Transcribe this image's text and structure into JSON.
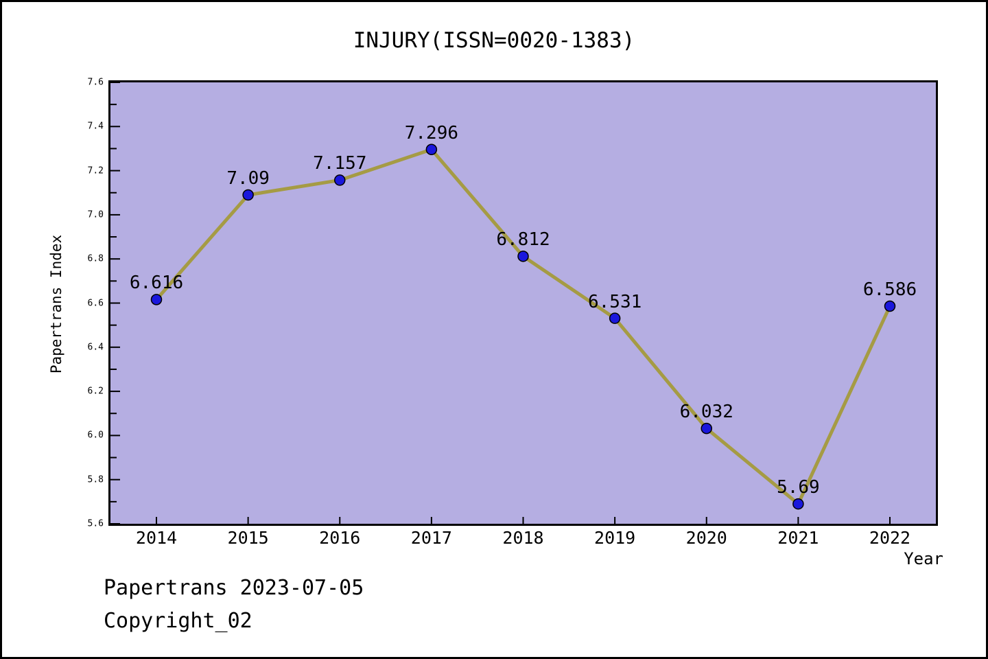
{
  "chart_data": {
    "type": "line",
    "title": "INJURY(ISSN=0020-1383)",
    "xlabel": "Year",
    "ylabel": "Papertrans Index",
    "x": [
      2014,
      2015,
      2016,
      2017,
      2018,
      2019,
      2020,
      2021,
      2022
    ],
    "series": [
      {
        "name": "Papertrans Index",
        "values": [
          6.616,
          7.09,
          7.157,
          7.296,
          6.812,
          6.531,
          6.032,
          5.69,
          6.586
        ]
      }
    ],
    "point_labels": [
      "6.616",
      "7.09",
      "7.157",
      "7.296",
      "6.812",
      "6.531",
      "6.032",
      "5.69",
      "6.586"
    ],
    "xtick_labels": [
      "2014",
      "2015",
      "2016",
      "2017",
      "2018",
      "2019",
      "2020",
      "2021",
      "2022"
    ],
    "ytick_labels": [
      "5.6",
      "5.8",
      "6.0",
      "6.2",
      "6.4",
      "6.6",
      "6.8",
      "7.0",
      "7.2",
      "7.4",
      "7.6"
    ],
    "ylim": [
      5.6,
      7.6
    ],
    "ytick_major_step": 0.2,
    "ytick_minor_step": 0.1,
    "grid": false,
    "legend": null,
    "colors": {
      "line": "#a59b44",
      "marker_fill": "#1a17dc",
      "marker_edge": "#000000",
      "plot_bg": "#b5aee2",
      "axis": "#000000",
      "text": "#000000"
    }
  },
  "footer": {
    "line1": "Papertrans 2023-07-05",
    "line2": "Copyright_02"
  }
}
